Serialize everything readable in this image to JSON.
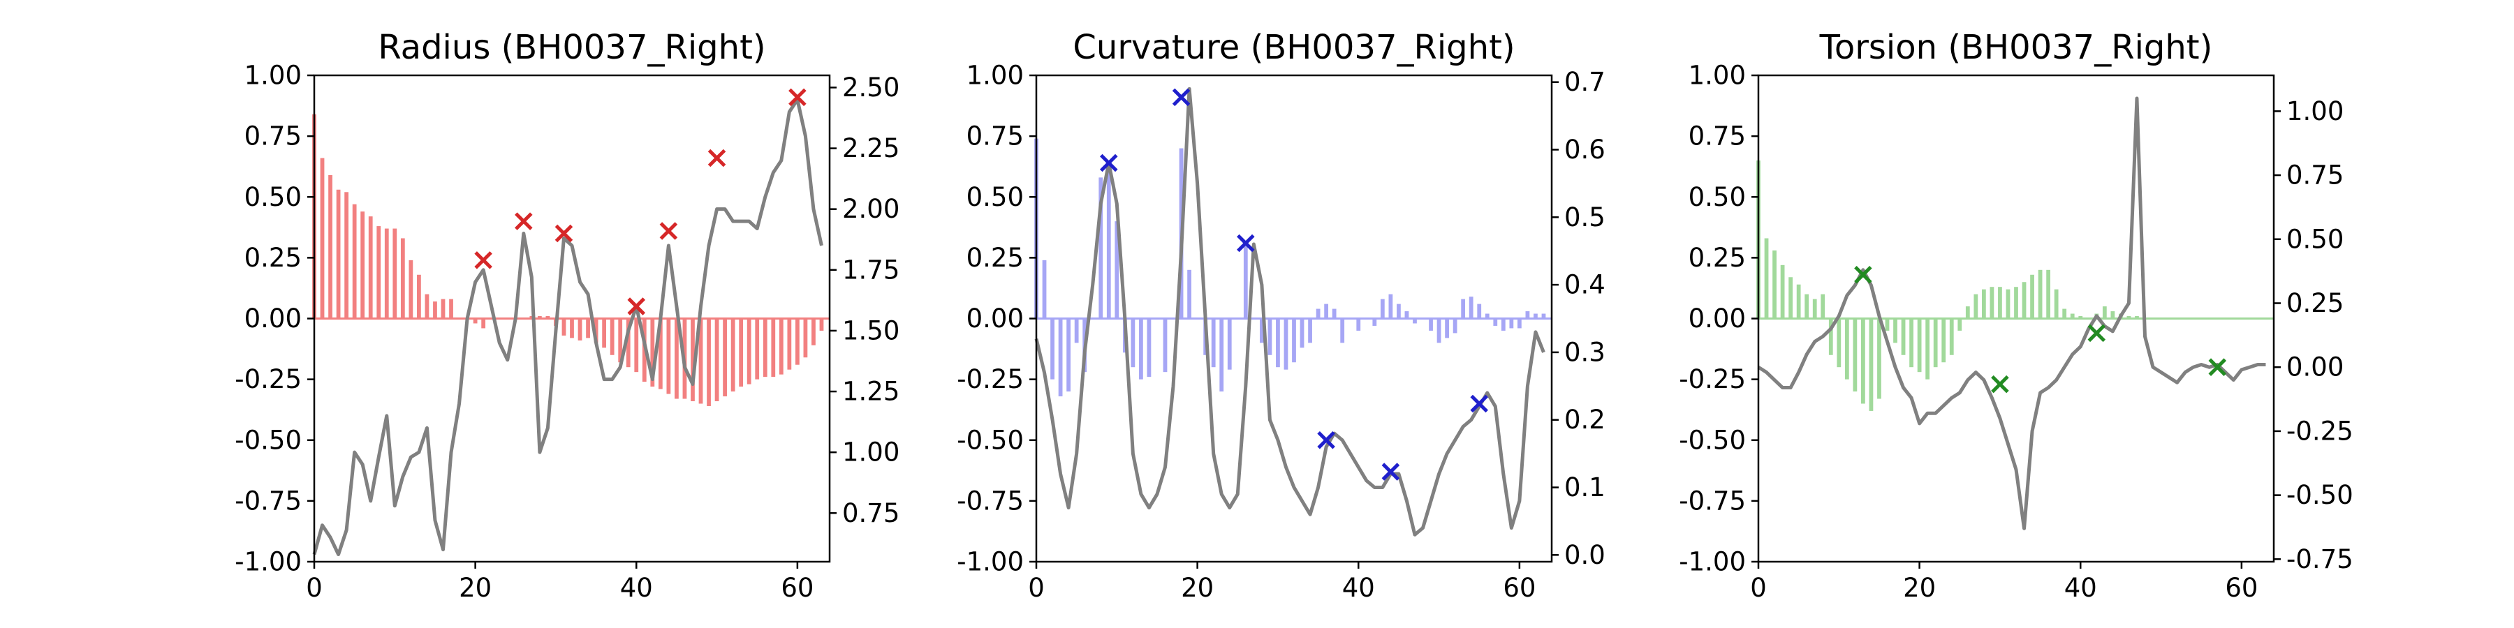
{
  "figure": {
    "background": "#ffffff"
  },
  "chart_data": [
    {
      "type": "bar+line",
      "title": "Radius (BH0037_Right)",
      "x": [
        0,
        1,
        2,
        3,
        4,
        5,
        6,
        7,
        8,
        9,
        10,
        11,
        12,
        13,
        14,
        15,
        16,
        17,
        18,
        19,
        20,
        21,
        22,
        23,
        24,
        25,
        26,
        27,
        28,
        29,
        30,
        31,
        32,
        33,
        34,
        35,
        36,
        37,
        38,
        39,
        40,
        41,
        42,
        43,
        44,
        45,
        46,
        47,
        48,
        49,
        50,
        51,
        52,
        53,
        54,
        55,
        56,
        57,
        58,
        59,
        60,
        61,
        62,
        63
      ],
      "xlim": [
        0,
        64
      ],
      "xticks": [
        0,
        20,
        40,
        60
      ],
      "left_axis": {
        "ylim": [
          -1.0,
          1.0
        ],
        "ticks": [
          "1.00",
          "0.75",
          "0.50",
          "0.25",
          "0.00",
          "-0.25",
          "-0.50",
          "-0.75",
          "-1.00"
        ]
      },
      "right_axis": {
        "ylim": [
          0.55,
          2.55
        ],
        "ticks": [
          "2.50",
          "2.25",
          "2.00",
          "1.75",
          "1.50",
          "1.25",
          "1.00",
          "0.75"
        ]
      },
      "bar_series": {
        "color": "#f28080",
        "axis": "left",
        "values": [
          0.84,
          0.66,
          0.59,
          0.53,
          0.52,
          0.47,
          0.44,
          0.42,
          0.38,
          0.37,
          0.37,
          0.33,
          0.24,
          0.18,
          0.1,
          0.07,
          0.08,
          0.08,
          0.0,
          0.0,
          -0.02,
          -0.04,
          0.0,
          0.0,
          0.0,
          0.0,
          0.0,
          0.01,
          0.01,
          0.01,
          -0.03,
          -0.07,
          -0.08,
          -0.09,
          -0.08,
          -0.1,
          -0.12,
          -0.15,
          -0.18,
          -0.2,
          -0.22,
          -0.26,
          -0.28,
          -0.29,
          -0.31,
          -0.33,
          -0.33,
          -0.34,
          -0.35,
          -0.36,
          -0.34,
          -0.32,
          -0.3,
          -0.28,
          -0.27,
          -0.25,
          -0.24,
          -0.24,
          -0.23,
          -0.21,
          -0.19,
          -0.16,
          -0.11,
          -0.05
        ]
      },
      "line_series": {
        "color": "#808080",
        "axis": "right",
        "values": [
          0.58,
          0.7,
          0.65,
          0.58,
          0.68,
          1.0,
          0.95,
          0.8,
          0.98,
          1.15,
          0.78,
          0.9,
          0.98,
          1.0,
          1.1,
          0.72,
          0.6,
          1.0,
          1.2,
          1.55,
          1.7,
          1.75,
          1.6,
          1.45,
          1.38,
          1.55,
          1.9,
          1.72,
          1.0,
          1.1,
          1.5,
          1.88,
          1.85,
          1.7,
          1.65,
          1.45,
          1.3,
          1.3,
          1.35,
          1.5,
          1.6,
          1.45,
          1.3,
          1.55,
          1.85,
          1.6,
          1.35,
          1.28,
          1.6,
          1.85,
          2.0,
          2.0,
          1.95,
          1.95,
          1.95,
          1.92,
          2.05,
          2.15,
          2.2,
          2.4,
          2.45,
          2.3,
          2.0,
          1.85
        ]
      },
      "markers": {
        "color": "#d62728",
        "axis": "left",
        "shape": "x",
        "points": [
          [
            21,
            0.24
          ],
          [
            26,
            0.4
          ],
          [
            31,
            0.35
          ],
          [
            40,
            0.05
          ],
          [
            44,
            0.36
          ],
          [
            50,
            0.66
          ],
          [
            60,
            0.91
          ]
        ]
      }
    },
    {
      "type": "bar+line",
      "title": "Curvature (BH0037_Right)",
      "x": [
        0,
        1,
        2,
        3,
        4,
        5,
        6,
        7,
        8,
        9,
        10,
        11,
        12,
        13,
        14,
        15,
        16,
        17,
        18,
        19,
        20,
        21,
        22,
        23,
        24,
        25,
        26,
        27,
        28,
        29,
        30,
        31,
        32,
        33,
        34,
        35,
        36,
        37,
        38,
        39,
        40,
        41,
        42,
        43,
        44,
        45,
        46,
        47,
        48,
        49,
        50,
        51,
        52,
        53,
        54,
        55,
        56,
        57,
        58,
        59,
        60,
        61,
        62,
        63
      ],
      "xlim": [
        0,
        64
      ],
      "xticks": [
        0,
        20,
        40,
        60
      ],
      "left_axis": {
        "ylim": [
          -1.0,
          1.0
        ],
        "ticks": [
          "1.00",
          "0.75",
          "0.50",
          "0.25",
          "0.00",
          "-0.25",
          "-0.50",
          "-0.75",
          "-1.00"
        ]
      },
      "right_axis": {
        "ylim": [
          -0.01,
          0.71
        ],
        "ticks": [
          "0.7",
          "0.6",
          "0.5",
          "0.4",
          "0.3",
          "0.2",
          "0.1",
          "0.0"
        ]
      },
      "bar_series": {
        "color": "#a6a6f5",
        "axis": "left",
        "values": [
          0.74,
          0.24,
          -0.25,
          -0.32,
          -0.3,
          -0.1,
          -0.22,
          0.0,
          0.58,
          0.62,
          0.4,
          -0.14,
          -0.2,
          -0.25,
          -0.24,
          0.0,
          -0.22,
          0.0,
          0.7,
          0.2,
          0.0,
          -0.15,
          -0.2,
          -0.3,
          -0.21,
          0.0,
          0.32,
          0.0,
          -0.1,
          -0.15,
          -0.2,
          -0.21,
          -0.18,
          -0.12,
          -0.1,
          0.04,
          0.06,
          0.04,
          -0.1,
          0.0,
          -0.05,
          0.0,
          -0.03,
          0.08,
          0.1,
          0.06,
          0.03,
          -0.02,
          0.0,
          -0.05,
          -0.1,
          -0.08,
          -0.06,
          0.08,
          0.09,
          0.06,
          0.02,
          -0.03,
          -0.05,
          -0.04,
          -0.04,
          0.03,
          0.02,
          0.02
        ]
      },
      "line_series": {
        "color": "#808080",
        "axis": "right",
        "values": [
          0.32,
          0.27,
          0.2,
          0.12,
          0.07,
          0.15,
          0.3,
          0.4,
          0.52,
          0.58,
          0.52,
          0.35,
          0.15,
          0.09,
          0.07,
          0.09,
          0.13,
          0.25,
          0.45,
          0.69,
          0.55,
          0.35,
          0.15,
          0.09,
          0.07,
          0.09,
          0.25,
          0.46,
          0.4,
          0.2,
          0.17,
          0.13,
          0.1,
          0.08,
          0.06,
          0.1,
          0.16,
          0.18,
          0.17,
          0.15,
          0.13,
          0.11,
          0.1,
          0.1,
          0.12,
          0.12,
          0.08,
          0.03,
          0.04,
          0.08,
          0.12,
          0.15,
          0.17,
          0.19,
          0.2,
          0.22,
          0.24,
          0.22,
          0.12,
          0.04,
          0.08,
          0.25,
          0.33,
          0.3
        ]
      },
      "markers": {
        "color": "#1f1fcc",
        "axis": "left",
        "shape": "x",
        "points": [
          [
            9,
            0.64
          ],
          [
            18,
            0.91
          ],
          [
            26,
            0.31
          ],
          [
            36,
            -0.5
          ],
          [
            44,
            -0.63
          ],
          [
            55,
            -0.35
          ]
        ]
      }
    },
    {
      "type": "bar+line",
      "title": "Torsion (BH0037_Right)",
      "x": [
        0,
        1,
        2,
        3,
        4,
        5,
        6,
        7,
        8,
        9,
        10,
        11,
        12,
        13,
        14,
        15,
        16,
        17,
        18,
        19,
        20,
        21,
        22,
        23,
        24,
        25,
        26,
        27,
        28,
        29,
        30,
        31,
        32,
        33,
        34,
        35,
        36,
        37,
        38,
        39,
        40,
        41,
        42,
        43,
        44,
        45,
        46,
        47,
        48,
        49,
        50,
        51,
        52,
        53,
        54,
        55,
        56,
        57,
        58,
        59,
        60,
        61,
        62,
        63
      ],
      "xlim": [
        0,
        64
      ],
      "xticks": [
        0,
        20,
        40,
        60
      ],
      "left_axis": {
        "ylim": [
          -1.0,
          1.0
        ],
        "ticks": [
          "1.00",
          "0.75",
          "0.50",
          "0.25",
          "0.00",
          "-0.25",
          "-0.50",
          "-0.75",
          "-1.00"
        ]
      },
      "right_axis": {
        "ylim": [
          -0.76,
          1.14
        ],
        "ticks": [
          "1.00",
          "0.75",
          "0.50",
          "0.25",
          "0.00",
          "-0.25",
          "-0.50",
          "-0.75"
        ]
      },
      "bar_series": {
        "color": "#a1d99b",
        "axis": "left",
        "values": [
          0.65,
          0.33,
          0.28,
          0.22,
          0.17,
          0.14,
          0.1,
          0.08,
          0.1,
          -0.15,
          -0.2,
          -0.25,
          -0.3,
          -0.35,
          -0.38,
          -0.33,
          -0.05,
          -0.1,
          -0.15,
          -0.2,
          -0.22,
          -0.25,
          -0.2,
          -0.18,
          -0.15,
          -0.05,
          0.05,
          0.1,
          0.12,
          0.13,
          0.13,
          0.12,
          0.13,
          0.15,
          0.18,
          0.2,
          0.2,
          0.12,
          0.04,
          0.02,
          0.01,
          0.0,
          0.02,
          0.05,
          0.03,
          0.02,
          0.01,
          0.01,
          0.0,
          0.0,
          0.0,
          0.0,
          0.0,
          0.0,
          0.0,
          0.0,
          0.0,
          0.0,
          0.0,
          0.0,
          0.0,
          0.0,
          0.0,
          0.0
        ]
      },
      "line_series": {
        "color": "#808080",
        "axis": "right",
        "values": [
          0.0,
          -0.02,
          -0.05,
          -0.08,
          -0.08,
          -0.02,
          0.05,
          0.1,
          0.12,
          0.15,
          0.2,
          0.28,
          0.32,
          0.38,
          0.32,
          0.2,
          0.1,
          0.0,
          -0.08,
          -0.12,
          -0.22,
          -0.18,
          -0.18,
          -0.15,
          -0.12,
          -0.1,
          -0.05,
          -0.02,
          -0.05,
          -0.12,
          -0.2,
          -0.3,
          -0.4,
          -0.63,
          -0.25,
          -0.1,
          -0.08,
          -0.05,
          0.0,
          0.05,
          0.08,
          0.15,
          0.2,
          0.16,
          0.14,
          0.2,
          0.25,
          1.05,
          0.12,
          0.0,
          -0.02,
          -0.04,
          -0.06,
          -0.02,
          0.0,
          0.01,
          0.0,
          0.01,
          -0.02,
          -0.05,
          -0.01,
          0.0,
          0.01,
          0.01
        ]
      },
      "markers": {
        "color": "#228b22",
        "axis": "left",
        "shape": "x",
        "points": [
          [
            13,
            0.18
          ],
          [
            30,
            -0.27
          ],
          [
            42,
            -0.06
          ],
          [
            57,
            -0.2
          ]
        ]
      }
    }
  ]
}
